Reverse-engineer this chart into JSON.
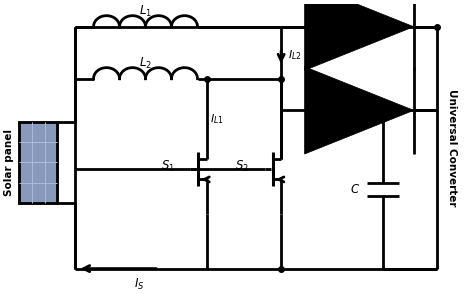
{
  "bg_color": "#ffffff",
  "line_color": "#000000",
  "line_width": 2.0,
  "fig_width": 4.74,
  "fig_height": 2.94,
  "dpi": 100,
  "xlim": [
    0,
    10
  ],
  "ylim": [
    0,
    6.2
  ],
  "solar_panel_color": "#5577aa",
  "solar_panel_grid_color": "#7799cc"
}
